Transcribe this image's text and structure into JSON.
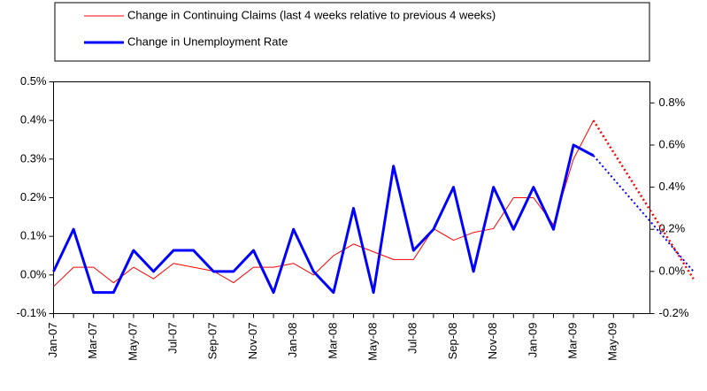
{
  "chart_data": {
    "type": "line",
    "categories": [
      "Jan-07",
      null,
      "Mar-07",
      null,
      "May-07",
      null,
      "Jul-07",
      null,
      "Sep-07",
      null,
      "Nov-07",
      null,
      "Jan-08",
      null,
      "Mar-08",
      null,
      "May-08",
      null,
      "Jul-08",
      null,
      "Sep-08",
      null,
      "Nov-08",
      null,
      "Jan-09",
      null,
      "Mar-09",
      null,
      "May-09",
      null,
      null,
      null,
      null
    ],
    "ylim": [
      -0.1,
      0.5
    ],
    "yticks": [
      {
        "value": -0.1,
        "label": "-0.1%"
      },
      {
        "value": 0.0,
        "label": "0.0%"
      },
      {
        "value": 0.1,
        "label": "0.1%"
      },
      {
        "value": 0.2,
        "label": "0.2%"
      },
      {
        "value": 0.3,
        "label": "0.3%"
      },
      {
        "value": 0.4,
        "label": "0.4%"
      },
      {
        "value": 0.5,
        "label": "0.5%"
      }
    ],
    "y2lim": [
      -0.2,
      0.9
    ],
    "y2ticks": [
      {
        "value": -0.2,
        "label": "-0.2%"
      },
      {
        "value": 0.0,
        "label": "0.0%"
      },
      {
        "value": 0.2,
        "label": "0.2%"
      },
      {
        "value": 0.4,
        "label": "0.4%"
      },
      {
        "value": 0.6,
        "label": "0.6%"
      },
      {
        "value": 0.8,
        "label": "0.8%"
      }
    ],
    "series": [
      {
        "name": "Change in Continuing Claims (last 4 weeks relative to previous 4 weeks)",
        "color": "#ff0000",
        "width": 1,
        "values": [
          -0.03,
          0.02,
          0.02,
          -0.02,
          0.02,
          -0.01,
          0.03,
          0.02,
          0.01,
          -0.02,
          0.02,
          0.02,
          0.03,
          0.0,
          0.05,
          0.08,
          0.06,
          0.04,
          0.04,
          0.12,
          0.09,
          0.11,
          0.12,
          0.2,
          0.2,
          0.13,
          0.3,
          0.4,
          null,
          null,
          null,
          null,
          null
        ]
      },
      {
        "name": "Change in Unemployment Rate",
        "color": "#0000ff",
        "width": 3,
        "axis": "y2",
        "values": [
          0.0,
          0.2,
          -0.1,
          -0.1,
          0.1,
          0.0,
          0.1,
          0.1,
          0.0,
          0.0,
          0.1,
          -0.1,
          0.2,
          0.0,
          -0.1,
          0.3,
          -0.1,
          0.5,
          0.1,
          0.2,
          0.4,
          0.0,
          0.4,
          0.2,
          0.4,
          0.2,
          0.6,
          0.55,
          null,
          null,
          null,
          null,
          null
        ]
      },
      {
        "color": "#ff0000",
        "width": 2.5,
        "style": "dotted",
        "values": [
          null,
          null,
          null,
          null,
          null,
          null,
          null,
          null,
          null,
          null,
          null,
          null,
          null,
          null,
          null,
          null,
          null,
          null,
          null,
          null,
          null,
          null,
          null,
          null,
          null,
          null,
          null,
          0.4,
          null,
          null,
          null,
          null,
          -0.01
        ]
      },
      {
        "color": "#0000ff",
        "width": 2,
        "style": "dotted",
        "axis": "y2",
        "values": [
          null,
          null,
          null,
          null,
          null,
          null,
          null,
          null,
          null,
          null,
          null,
          null,
          null,
          null,
          null,
          null,
          null,
          null,
          null,
          null,
          null,
          null,
          null,
          null,
          null,
          null,
          null,
          0.55,
          null,
          null,
          null,
          null,
          0.0
        ]
      }
    ]
  }
}
